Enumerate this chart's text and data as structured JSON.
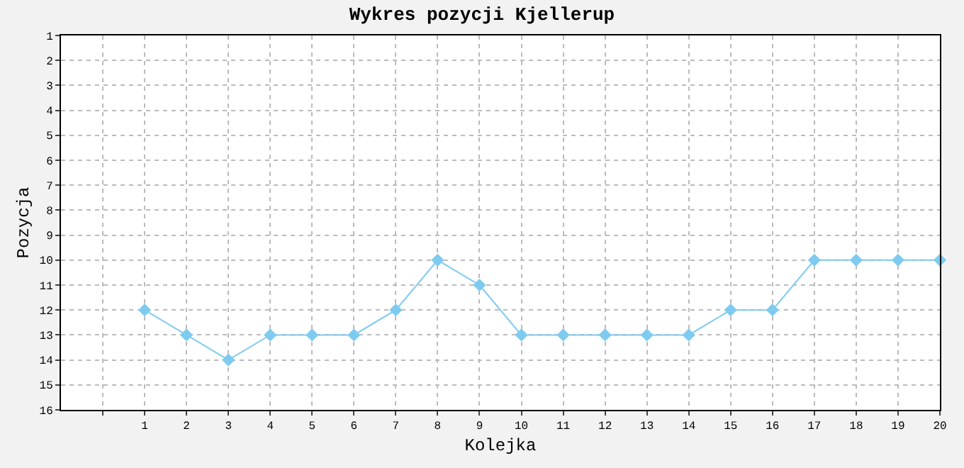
{
  "chart_data": {
    "type": "line",
    "title": "Wykres pozycji Kjellerup",
    "xlabel": "Kolejka",
    "ylabel": "Pozycja",
    "x": [
      1,
      2,
      3,
      4,
      5,
      6,
      7,
      8,
      9,
      10,
      11,
      12,
      13,
      14,
      15,
      16,
      17,
      18,
      19,
      20
    ],
    "series": [
      {
        "color": "#7fcbf0",
        "values": [
          12,
          13,
          14,
          13,
          13,
          13,
          12,
          10,
          11,
          13,
          13,
          13,
          13,
          13,
          12,
          12,
          10,
          10,
          10,
          10
        ]
      }
    ],
    "xlim": [
      -1,
      20
    ],
    "xticks": [
      {
        "value": 0,
        "label": null
      },
      1,
      2,
      3,
      4,
      5,
      6,
      7,
      8,
      9,
      10,
      11,
      12,
      13,
      14,
      15,
      16,
      17,
      18,
      19,
      20
    ],
    "ylim": [
      16,
      1
    ],
    "yticks": [
      1,
      2,
      3,
      4,
      5,
      6,
      7,
      8,
      9,
      10,
      11,
      12,
      13,
      14,
      15,
      16
    ],
    "grid": true,
    "marker": "diamond",
    "line_style": "solid"
  }
}
